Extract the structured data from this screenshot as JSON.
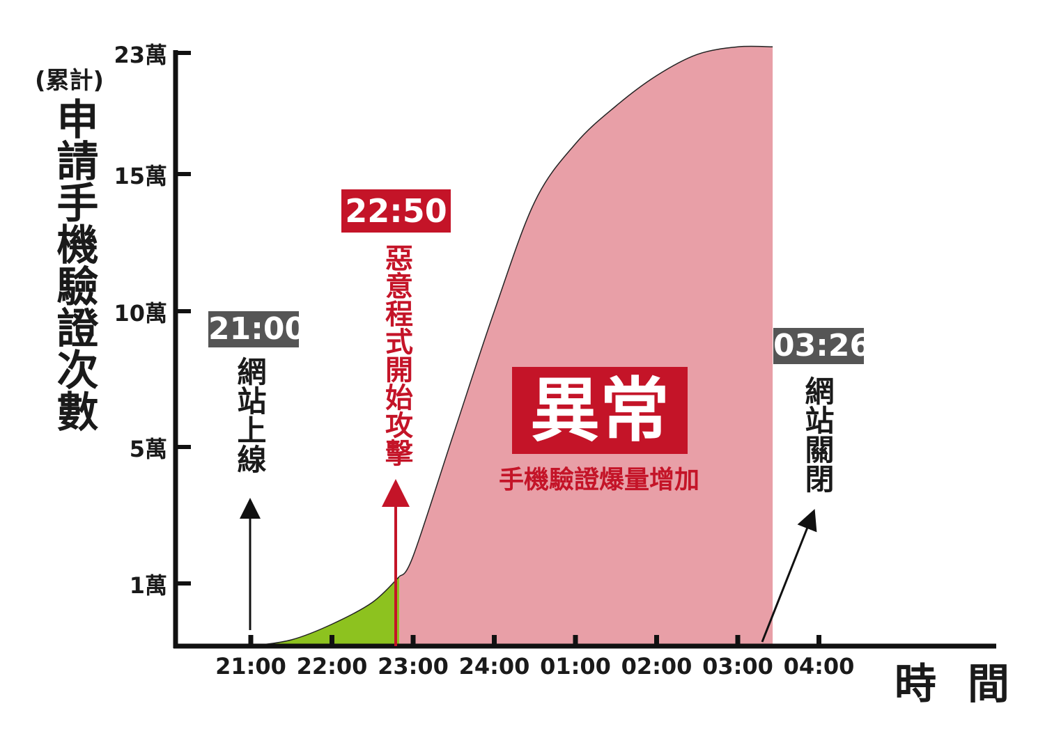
{
  "chart_data": {
    "type": "area",
    "ylabel_note": "(累計)",
    "ylabel": "申請手機驗證次數",
    "xlabel": "時 間",
    "y_ticks": [
      {
        "value": 10000,
        "label": "1萬"
      },
      {
        "value": 50000,
        "label": "5萬"
      },
      {
        "value": 100000,
        "label": "10萬"
      },
      {
        "value": 150000,
        "label": "15萬"
      },
      {
        "value": 230000,
        "label": "23萬"
      }
    ],
    "x_ticks": [
      "21:00",
      "22:00",
      "23:00",
      "24:00",
      "01:00",
      "02:00",
      "03:00",
      "04:00"
    ],
    "x_unit": "hours after 21:00",
    "series": [
      {
        "segment": "normal",
        "color": "#8dc21f",
        "x": [
          0.0,
          0.5,
          1.0,
          1.5,
          1.83
        ],
        "values": [
          0,
          1000,
          3500,
          7000,
          12000
        ]
      },
      {
        "segment": "abnormal",
        "color": "#e89fa7",
        "x": [
          1.83,
          2.0,
          2.5,
          3.0,
          3.5,
          4.0,
          4.5,
          5.0,
          5.5,
          6.0,
          6.43
        ],
        "values": [
          12000,
          18000,
          55000,
          100000,
          140000,
          170000,
          195000,
          215000,
          229000,
          234000,
          234000
        ]
      }
    ],
    "annotations": [
      {
        "time": "21:00",
        "text": "網站上線"
      },
      {
        "time": "22:50",
        "text": "惡意程式開始攻擊"
      },
      {
        "time": "03:26",
        "text": "網站關閉"
      }
    ],
    "highlight": {
      "title": "異常",
      "subtitle": "手機驗證爆量增加"
    }
  },
  "colors": {
    "axis": "#111111",
    "green": "#8dc21f",
    "pink": "#e89fa7",
    "red": "#c41428",
    "gray_box": "#555555"
  }
}
